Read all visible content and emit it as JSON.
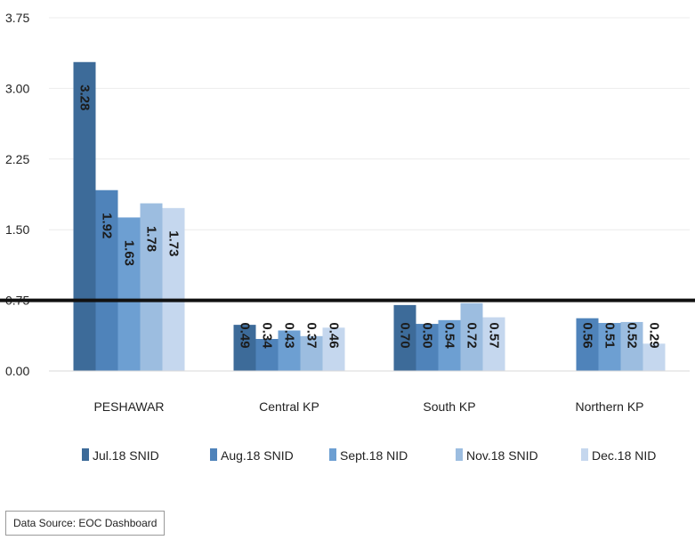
{
  "chart_data": {
    "type": "bar",
    "categories": [
      "PESHAWAR",
      "Central KP",
      "South KP",
      "Northern KP"
    ],
    "series": [
      {
        "name": "Jul.18 SNID",
        "color": "#3d6b99",
        "values": [
          3.28,
          0.49,
          0.7,
          null
        ]
      },
      {
        "name": "Aug.18 SNID",
        "color": "#4f83ba",
        "values": [
          1.92,
          0.34,
          0.5,
          0.56
        ]
      },
      {
        "name": "Sept.18 NID",
        "color": "#6d9fd2",
        "values": [
          1.63,
          0.43,
          0.54,
          0.51
        ]
      },
      {
        "name": "Nov.18 SNID",
        "color": "#9cbde0",
        "values": [
          1.78,
          0.37,
          0.72,
          0.52
        ]
      },
      {
        "name": "Dec.18 NID",
        "color": "#c5d7ee",
        "values": [
          1.73,
          0.46,
          0.57,
          0.29
        ]
      }
    ],
    "data_labels": [
      [
        "3.28",
        "1.92",
        "1.63",
        "1.78",
        "1.73"
      ],
      [
        "0.49",
        "0.34",
        "0.43",
        "0.37",
        "0.46"
      ],
      [
        "0.70",
        "0.50",
        "0.54",
        "0.72",
        "0.57"
      ],
      [
        "",
        "0.56",
        "0.51",
        "0.52",
        "0.29"
      ]
    ],
    "yticks": [
      "0.00",
      "0.75",
      "1.50",
      "2.25",
      "3.00",
      "3.75"
    ],
    "ylim": [
      0,
      3.75
    ],
    "threshold": 0.75,
    "grid": true,
    "legend_position": "bottom"
  },
  "source_note": "Data Source: EOC Dashboard"
}
